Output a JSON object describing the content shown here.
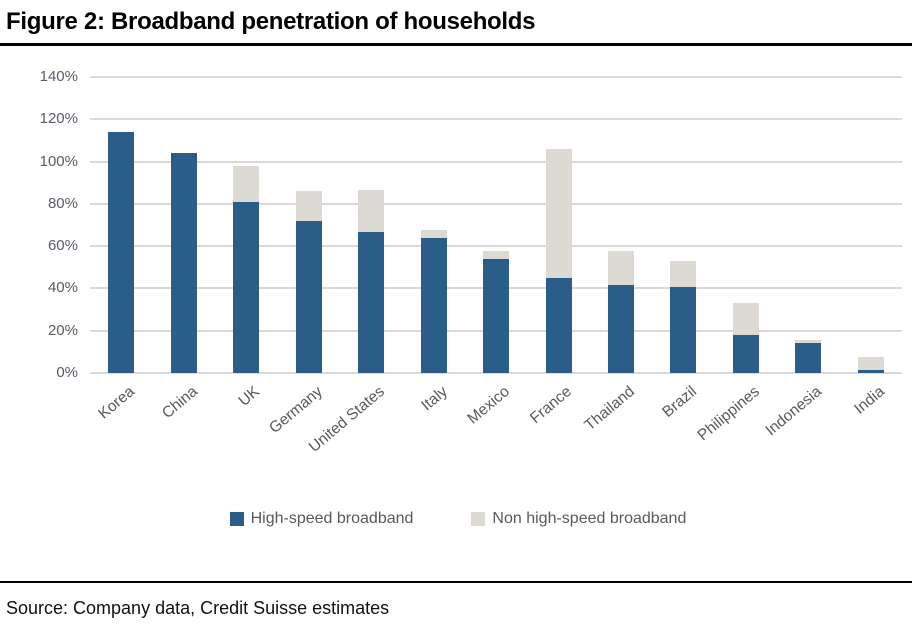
{
  "title": "Figure 2: Broadband penetration of households",
  "source": "Source: Company data, Credit Suisse estimates",
  "colors": {
    "high_speed": "#2a5d87",
    "non_high_speed": "#ddd9d3",
    "gridline": "#d9d9d9",
    "y_axis_text": "#575c68",
    "x_axis_text": "#595959",
    "legend_text": "#595959",
    "title_text": "#000000",
    "rule": "#000000"
  },
  "chart_data": {
    "type": "bar",
    "stacked": true,
    "title": "Figure 2: Broadband penetration of households",
    "xlabel": "",
    "ylabel": "",
    "ylim": [
      0,
      140
    ],
    "y_tick_step": 20,
    "y_tick_labels": [
      "0%",
      "20%",
      "40%",
      "60%",
      "80%",
      "100%",
      "120%",
      "140%"
    ],
    "grid": true,
    "legend_position": "bottom",
    "categories": [
      "Korea",
      "China",
      "UK",
      "Germany",
      "United States",
      "Italy",
      "Mexico",
      "France",
      "Thailand",
      "Brazil",
      "Philippines",
      "Indonesia",
      "India"
    ],
    "series": [
      {
        "name": "High-speed broadband",
        "values": [
          114,
          104,
          81,
          72,
          66.5,
          64,
          54,
          45,
          41.5,
          40.5,
          18,
          14,
          1.5
        ]
      },
      {
        "name": "Non high-speed broadband",
        "values": [
          0,
          0,
          17,
          14,
          20,
          3.5,
          3.5,
          61,
          16,
          12.5,
          15,
          1.5,
          6
        ]
      }
    ],
    "totals": [
      114,
      104,
      98,
      86,
      86.5,
      67.5,
      57.5,
      106,
      57.5,
      53,
      33,
      15.5,
      7.5
    ]
  }
}
